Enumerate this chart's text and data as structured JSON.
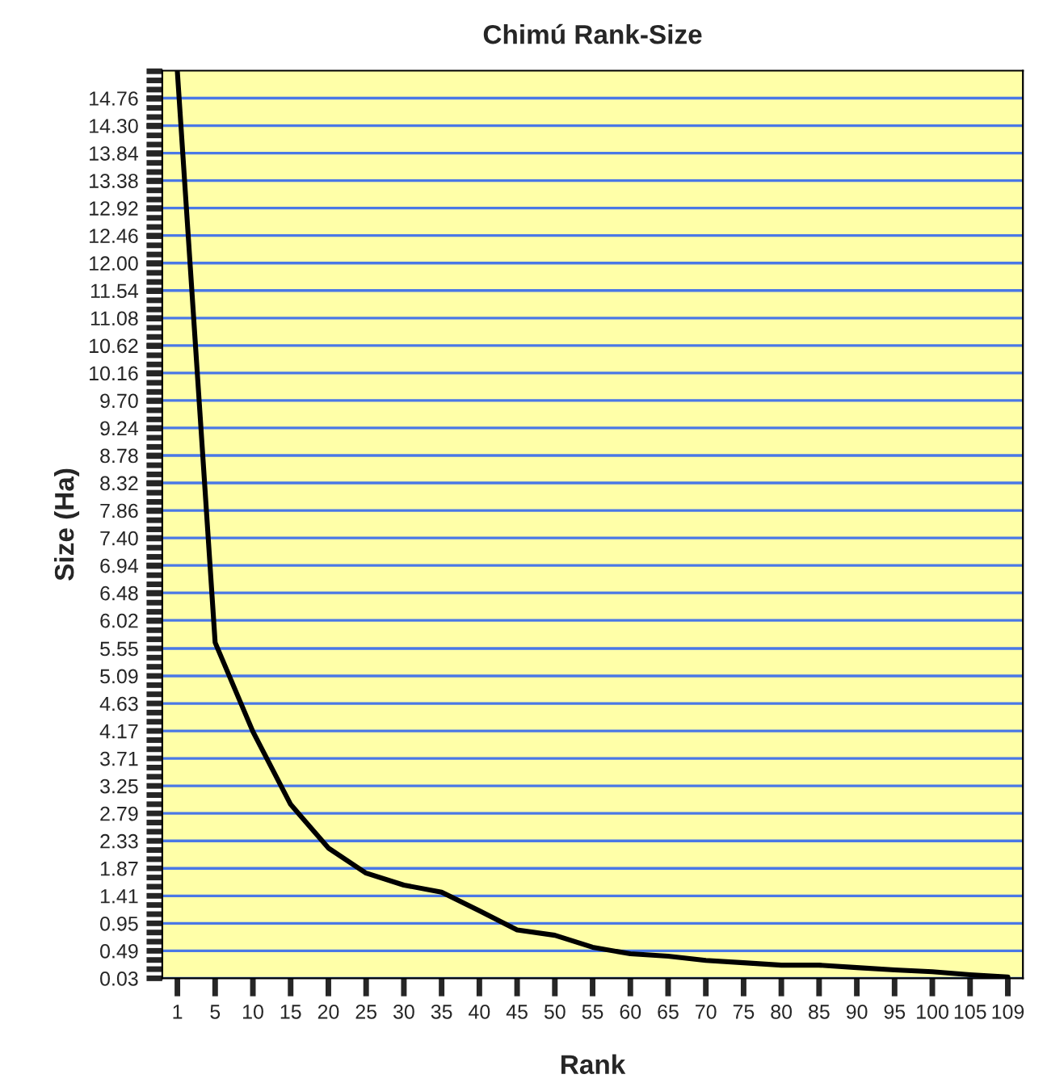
{
  "chart_data": {
    "type": "line",
    "title": "Chimú Rank-Size",
    "xlabel": "Rank",
    "ylabel": "Size (Ha)",
    "categories": [
      "1",
      "5",
      "10",
      "15",
      "20",
      "25",
      "30",
      "35",
      "40",
      "45",
      "50",
      "55",
      "60",
      "65",
      "70",
      "75",
      "80",
      "85",
      "90",
      "95",
      "100",
      "105",
      "109"
    ],
    "series": [
      {
        "color": "#000000",
        "values": [
          15.2,
          5.65,
          4.16,
          2.94,
          2.21,
          1.79,
          1.59,
          1.47,
          1.16,
          0.84,
          0.75,
          0.55,
          0.44,
          0.4,
          0.33,
          0.29,
          0.25,
          0.25,
          0.21,
          0.17,
          0.14,
          0.09,
          0.05
        ]
      }
    ],
    "ylim": [
      0.03,
      15.22
    ],
    "yticks": [
      0.03,
      0.49,
      0.95,
      1.41,
      1.87,
      2.33,
      2.79,
      3.25,
      3.71,
      4.17,
      4.63,
      5.09,
      5.55,
      6.02,
      6.48,
      6.94,
      {
        "value": 7.4,
        "label": "7.40"
      },
      7.86,
      8.32,
      8.78,
      9.24,
      {
        "value": 9.7,
        "label": "9.70"
      },
      10.16,
      10.62,
      11.08,
      11.54,
      {
        "value": 12,
        "label": "12.00"
      },
      12.46,
      12.92,
      13.38,
      13.84,
      {
        "value": 14.3,
        "label": "14.30"
      },
      14.76
    ],
    "grid": "y",
    "marker": "none",
    "line_style": "solid",
    "legend": false
  }
}
